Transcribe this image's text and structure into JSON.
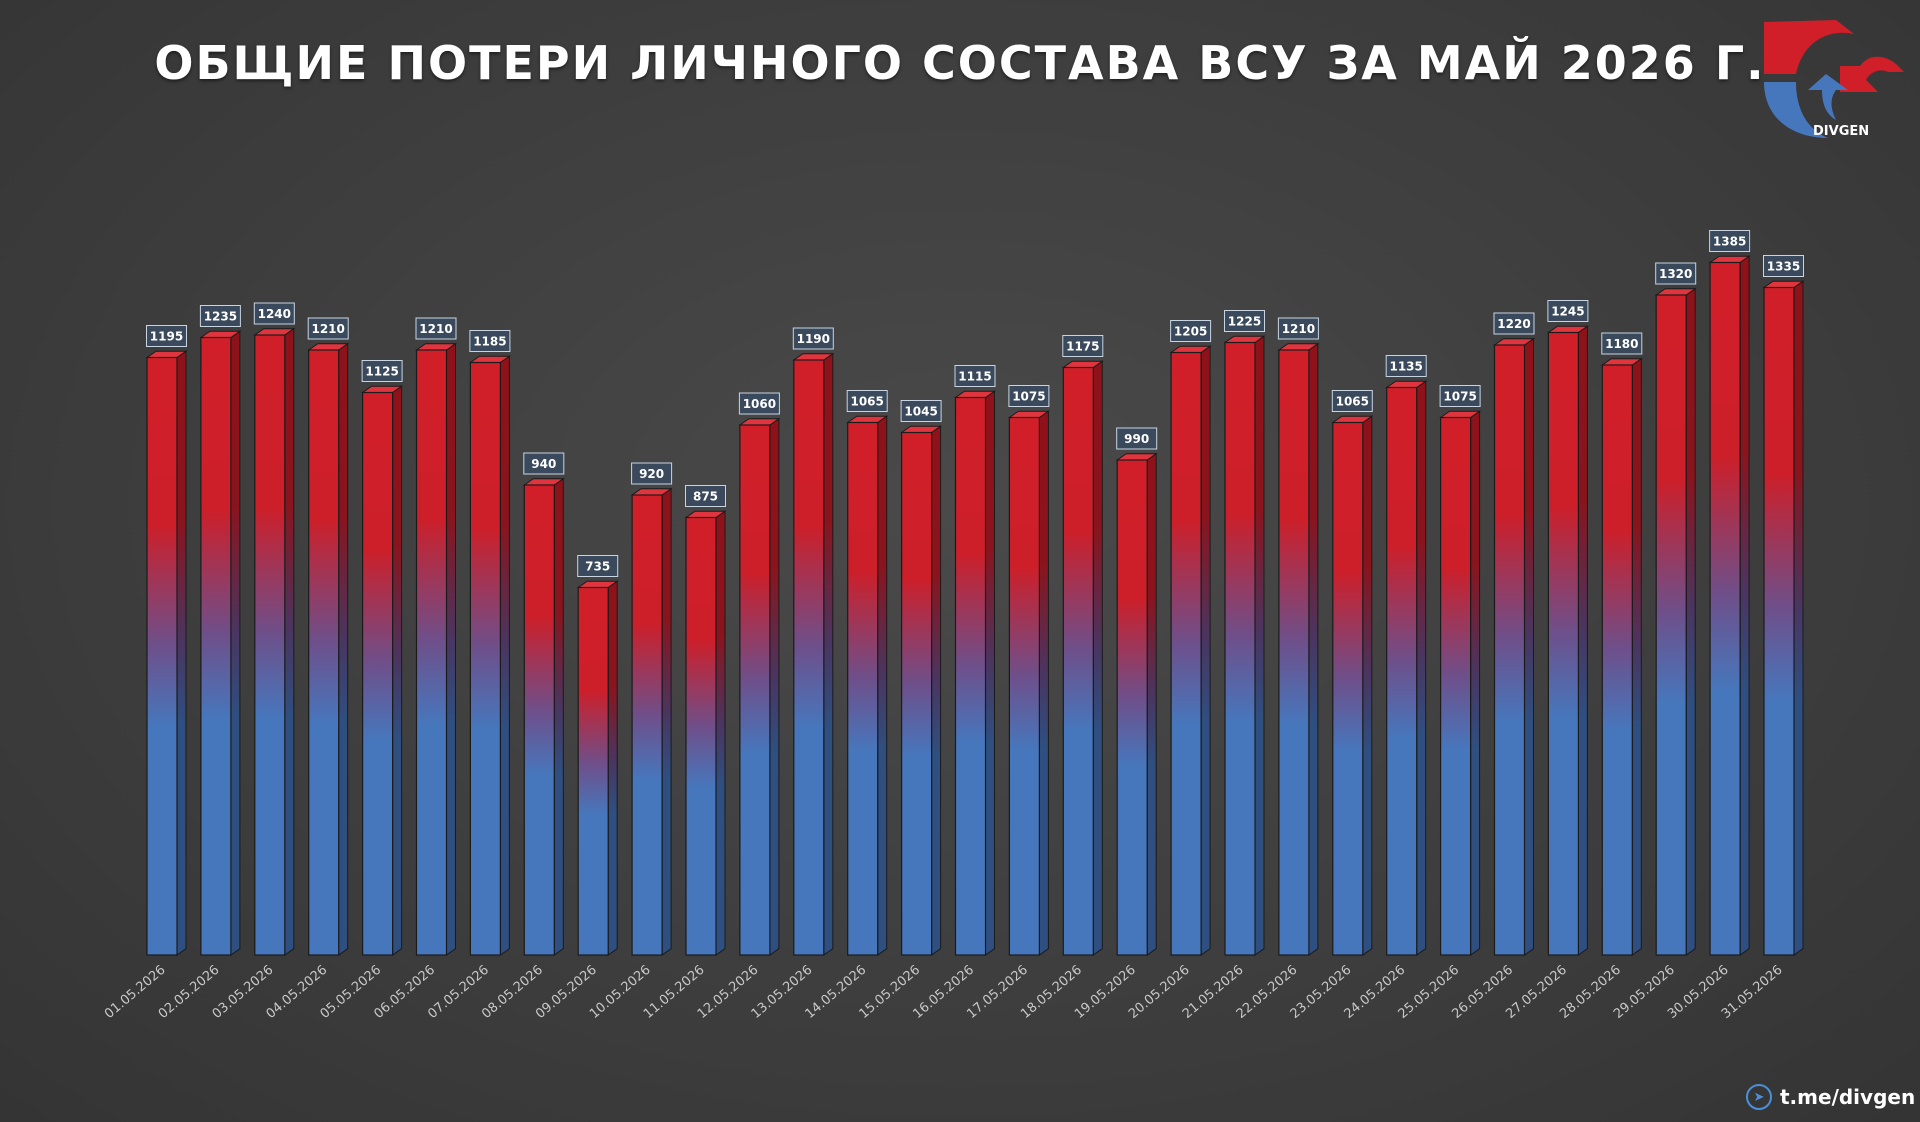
{
  "chart_data": {
    "type": "bar",
    "title": "ОБЩИЕ ПОТЕРИ ЛИЧНОГО СОСТАВА ВСУ ЗА МАЙ 2026 Г.",
    "xlabel": "",
    "ylabel": "",
    "ylim": [
      0,
      1450
    ],
    "grid": false,
    "legend": "none",
    "categories": [
      "01.05.2026",
      "02.05.2026",
      "03.05.2026",
      "04.05.2026",
      "05.05.2026",
      "06.05.2026",
      "07.05.2026",
      "08.05.2026",
      "09.05.2026",
      "10.05.2026",
      "11.05.2026",
      "12.05.2026",
      "13.05.2026",
      "14.05.2026",
      "15.05.2026",
      "16.05.2026",
      "17.05.2026",
      "18.05.2026",
      "19.05.2026",
      "20.05.2026",
      "21.05.2026",
      "22.05.2026",
      "23.05.2026",
      "24.05.2026",
      "25.05.2026",
      "26.05.2026",
      "27.05.2026",
      "28.05.2026",
      "29.05.2026",
      "30.05.2026",
      "31.05.2026"
    ],
    "values": [
      1195,
      1235,
      1240,
      1210,
      1125,
      1210,
      1185,
      940,
      735,
      920,
      875,
      1060,
      1190,
      1065,
      1045,
      1115,
      1075,
      1175,
      990,
      1205,
      1225,
      1210,
      1065,
      1135,
      1075,
      1220,
      1245,
      1180,
      1320,
      1385,
      1335
    ],
    "colors": {
      "top": "#d11f29",
      "bottom": "#4677bd"
    }
  },
  "branding": {
    "name": "DIVGEN",
    "icon": "divgen-logo-icon"
  },
  "footer": {
    "link": "t.me/divgen",
    "icon": "telegram-icon"
  }
}
